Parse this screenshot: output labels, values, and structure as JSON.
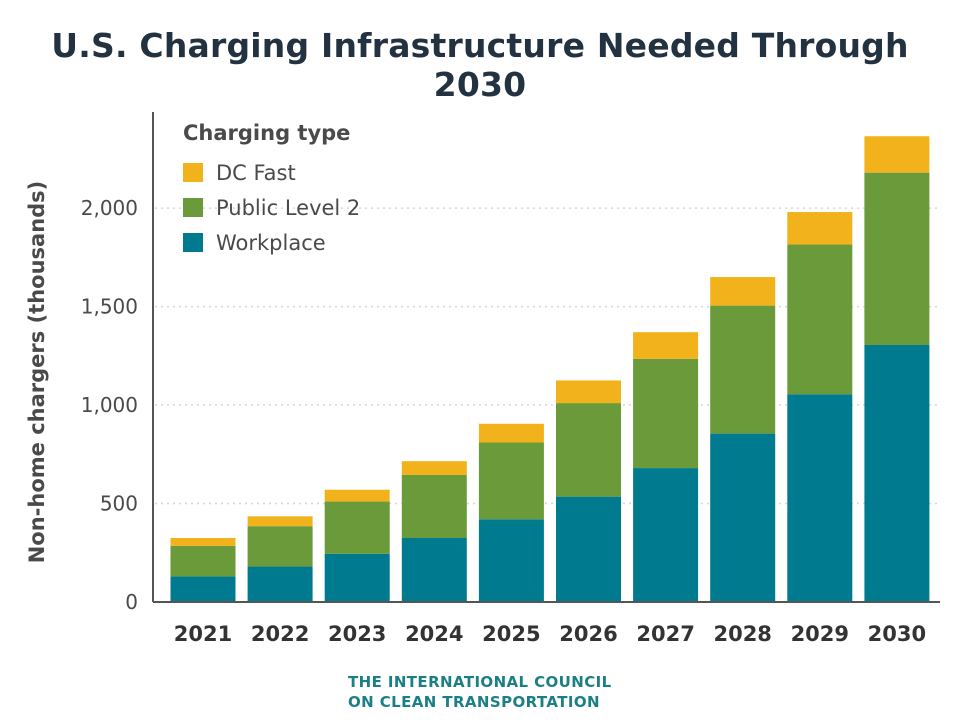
{
  "page": {
    "title": "U.S. Charging Infrastructure Needed Through 2030",
    "source_line1": "THE INTERNATIONAL COUNCIL",
    "source_line2": "ON CLEAN TRANSPORTATION"
  },
  "chart_data": {
    "type": "bar",
    "stacked": true,
    "title": "U.S. Charging Infrastructure Needed Through 2030",
    "ylabel": "Non-home chargers (thousands)",
    "xlabel": "",
    "ylim": [
      0,
      2400
    ],
    "yticks": [
      0,
      500,
      1000,
      1500,
      2000
    ],
    "ytick_labels": [
      "0",
      "500",
      "1,000",
      "1,500",
      "2,000"
    ],
    "grid": "horizontal dotted",
    "legend_title": "Charging type",
    "legend_position": "top-left",
    "categories": [
      "2021",
      "2022",
      "2023",
      "2024",
      "2025",
      "2026",
      "2027",
      "2028",
      "2029",
      "2030"
    ],
    "series": [
      {
        "name": "Workplace",
        "color": "#007a8f",
        "values": [
          130,
          180,
          245,
          325,
          420,
          535,
          680,
          855,
          1055,
          1305
        ]
      },
      {
        "name": "Public Level 2",
        "color": "#6a9a3a",
        "values": [
          155,
          205,
          265,
          320,
          390,
          475,
          555,
          650,
          760,
          875
        ]
      },
      {
        "name": "DC Fast",
        "color": "#f2b21b",
        "values": [
          40,
          50,
          60,
          70,
          95,
          115,
          135,
          145,
          165,
          185
        ]
      }
    ],
    "legend_order": [
      "DC Fast",
      "Public Level 2",
      "Workplace"
    ]
  }
}
